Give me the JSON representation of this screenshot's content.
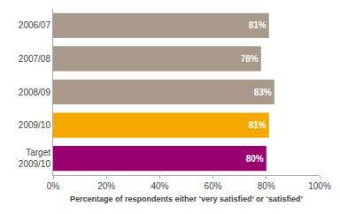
{
  "chart_data": {
    "type": "bar",
    "orientation": "horizontal",
    "categories": [
      "2006/07",
      "2007/08",
      "2008/09",
      "2009/10",
      "Target\n2009/10"
    ],
    "values": [
      81,
      78,
      83,
      81,
      80
    ],
    "value_labels": [
      "81%",
      "78%",
      "83%",
      "81%",
      "80%"
    ],
    "data_labels": true,
    "colors": [
      "#a8998a",
      "#a8998a",
      "#a8998a",
      "#f5a800",
      "#9b0070"
    ],
    "xlabel": "Percentage of respondents either ‘very satisfied’ or ‘satisfied’",
    "xlim": [
      0,
      100
    ],
    "xticks": [
      {
        "value": 0,
        "label": "0%"
      },
      {
        "value": 20,
        "label": "20%"
      },
      {
        "value": 40,
        "label": "40%"
      },
      {
        "value": 60,
        "label": "60%"
      },
      {
        "value": 80,
        "label": "80%"
      },
      {
        "value": 100,
        "label": "100%"
      }
    ],
    "grid": false
  }
}
